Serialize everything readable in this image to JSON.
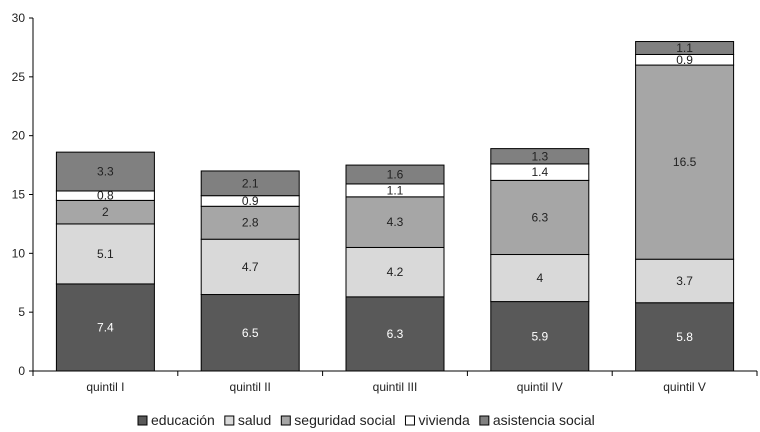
{
  "chart_data": {
    "type": "bar",
    "stacked": true,
    "categories": [
      "quintil I",
      "quintil II",
      "quintil III",
      "quintil IV",
      "quintil V"
    ],
    "series": [
      {
        "name": "educación",
        "color": "#595959",
        "label_color": "#ffffff",
        "values": [
          7.4,
          6.5,
          6.3,
          5.9,
          5.8
        ]
      },
      {
        "name": "salud",
        "color": "#d9d9d9",
        "label_color": "#222222",
        "values": [
          5.1,
          4.7,
          4.2,
          4,
          3.7
        ]
      },
      {
        "name": "seguridad social",
        "color": "#a6a6a6",
        "label_color": "#222222",
        "values": [
          2,
          2.8,
          4.3,
          6.3,
          16.5
        ]
      },
      {
        "name": "vivienda",
        "color": "#ffffff",
        "label_color": "#222222",
        "values": [
          0.8,
          0.9,
          1.1,
          1.4,
          0.9
        ]
      },
      {
        "name": "asistencia social",
        "color": "#808080",
        "label_color": "#222222",
        "values": [
          3.3,
          2.1,
          1.6,
          1.3,
          1.1
        ]
      }
    ],
    "ylim": [
      0,
      30
    ],
    "yticks": [
      0,
      5,
      10,
      15,
      20,
      25,
      30
    ],
    "grid": false,
    "legend_position": "bottom"
  }
}
